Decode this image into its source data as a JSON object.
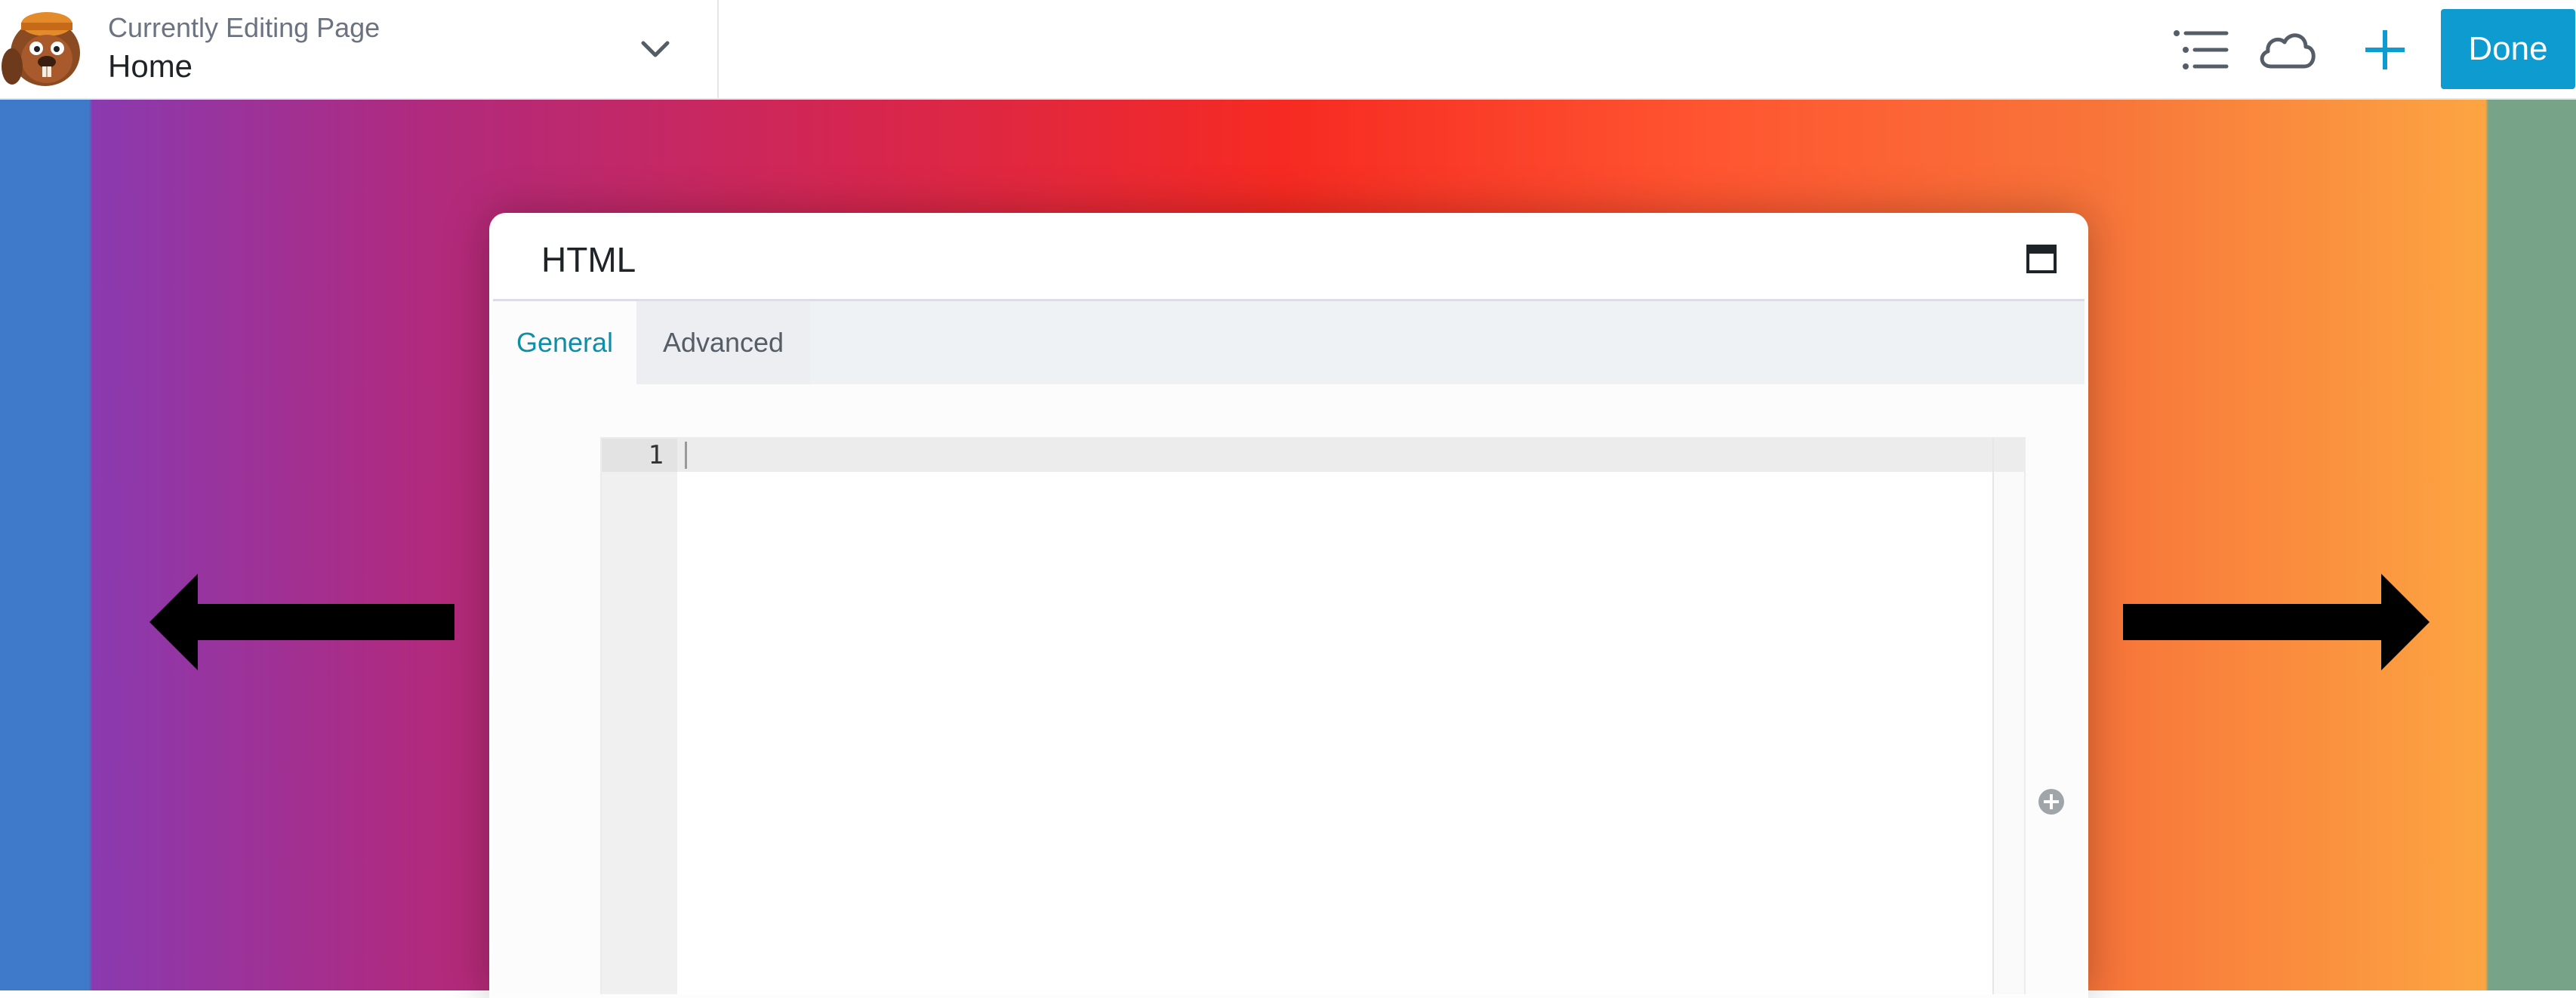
{
  "topbar": {
    "editing_label": "Currently Editing Page",
    "page_name": "Home",
    "done_label": "Done"
  },
  "modal": {
    "title": "HTML",
    "tabs": [
      {
        "label": "General",
        "active": true
      },
      {
        "label": "Advanced",
        "active": false
      }
    ],
    "editor": {
      "line_numbers": [
        "1"
      ],
      "content": ""
    }
  },
  "icons": {
    "logo": "beaver-builder-logo-icon",
    "page_switch": "chevron-down-icon",
    "outline": "list-outline-icon",
    "saved": "cloud-icon",
    "add_content": "plus-icon",
    "maximize": "maximize-window-icon",
    "left_arrow": "arrow-left-icon",
    "right_arrow": "arrow-right-icon",
    "editor_add": "plus-circle-icon"
  },
  "colors": {
    "accent": "#0e9bd0",
    "active_tab_text": "#0e8ea8",
    "canvas_gradient": [
      "#3f79c9",
      "#8a3ab0",
      "#d6264e",
      "#f62a22",
      "#ff5430",
      "#fca542",
      "#77a488"
    ]
  }
}
